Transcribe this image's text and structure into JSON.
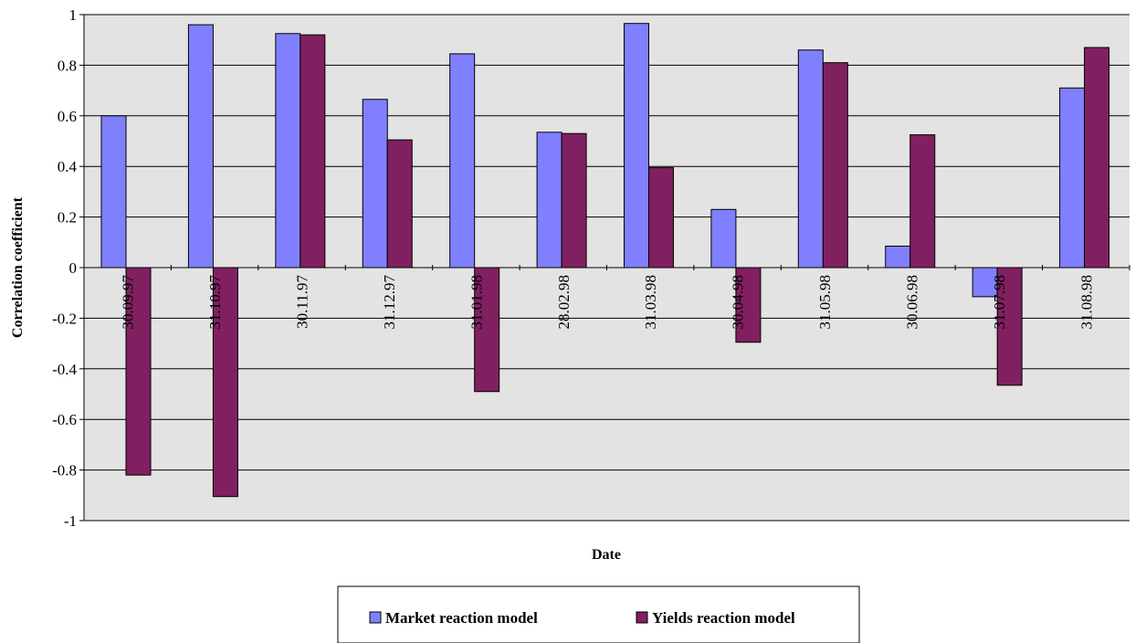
{
  "chart_data": {
    "type": "bar",
    "categories": [
      "30.09.97",
      "31.10.97",
      "30.11.97",
      "31.12.97",
      "31.01.98",
      "28.02.98",
      "31.03.98",
      "30.04.98",
      "31.05.98",
      "30.06.98",
      "31.07.98",
      "31.08.98"
    ],
    "series": [
      {
        "name": "Market reaction model",
        "color": "#8080ff",
        "values": [
          0.6,
          0.96,
          0.925,
          0.665,
          0.845,
          0.535,
          0.965,
          0.23,
          0.86,
          0.085,
          -0.115,
          0.71
        ]
      },
      {
        "name": "Yields reaction model",
        "color": "#802060",
        "values": [
          -0.82,
          -0.905,
          0.92,
          0.505,
          -0.49,
          0.53,
          0.395,
          -0.295,
          0.81,
          0.525,
          -0.465,
          0.87
        ]
      }
    ],
    "xlabel": "Date",
    "ylabel": "Correlation coefficient",
    "ylim": [
      -1,
      1
    ],
    "yticks": [
      1,
      0.8,
      0.6,
      0.4,
      0.2,
      0,
      -0.2,
      -0.4,
      -0.6,
      -0.8,
      -1
    ],
    "ytick_labels": [
      "1",
      "0.8",
      "0.6",
      "0.4",
      "0.2",
      "0",
      "-0.2",
      "-0.4",
      "-0.6",
      "-0.8",
      "-1"
    ],
    "grid": true,
    "plot_background": "#e3e3e3",
    "legend_position": "bottom"
  }
}
